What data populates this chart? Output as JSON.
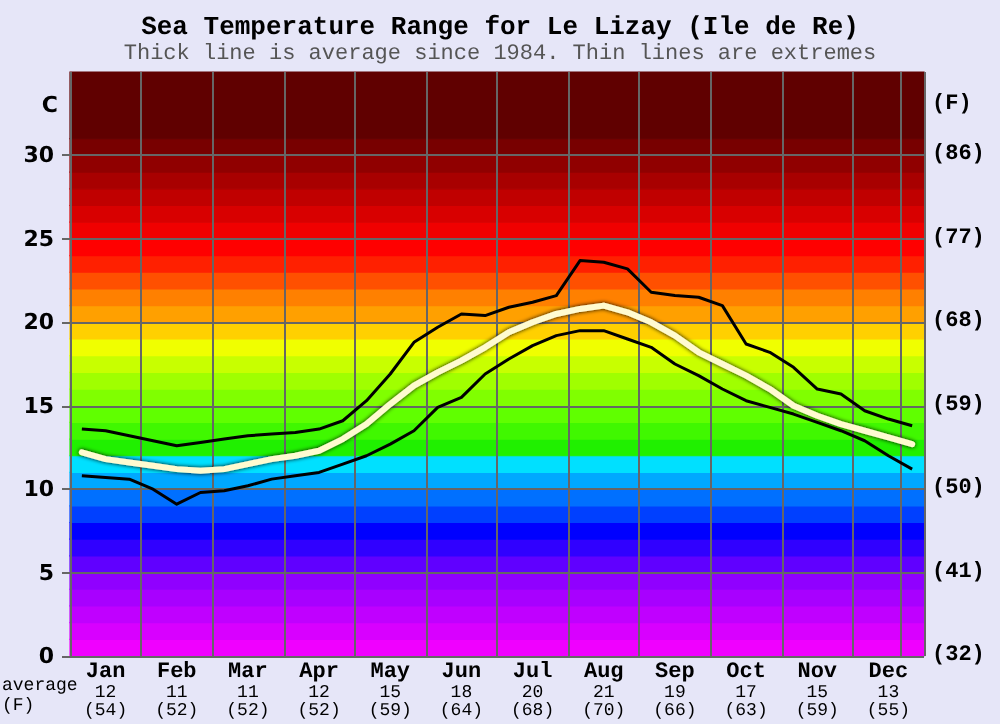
{
  "chart_data": {
    "type": "line",
    "title": "Sea Temperature Range for Le Lizay (Ile de Re)",
    "subtitle": "Thick line is average since 1984. Thin lines are extremes",
    "ylabel": "C",
    "y2label": "(F)",
    "categories": [
      null,
      "Jan\n12\n(54)",
      null,
      null,
      "Feb\n11\n(52)",
      null,
      null,
      "Mar\n11\n(52)",
      null,
      null,
      "Apr\n12\n(52)",
      null,
      null,
      "May\n15\n(59)",
      null,
      null,
      "Jun\n18\n(64)",
      null,
      null,
      "Jul\n20\n(68)",
      null,
      null,
      "Aug\n21\n(70)",
      null,
      null,
      "Sep\n19\n(66)",
      null,
      null,
      "Oct\n17\n(63)",
      null,
      null,
      "Nov\n15\n(59)",
      null,
      null,
      "Dec\n13\n(55)",
      null
    ],
    "annotations": [
      "average\n(F)"
    ],
    "ylim": [
      0,
      35
    ],
    "yticks": [
      0,
      5,
      10,
      15,
      20,
      25,
      30
    ],
    "y2lim": [
      32,
      95
    ],
    "y2ticks": [
      {
        "value": 32,
        "label": "(32)"
      },
      {
        "value": 41,
        "label": "(41)"
      },
      {
        "value": 50,
        "label": "(50)"
      },
      {
        "value": 59,
        "label": "(59)"
      },
      {
        "value": 68,
        "label": "(68)"
      },
      {
        "value": 77,
        "label": "(77)"
      },
      {
        "value": 86,
        "label": "(86)"
      }
    ],
    "grid": true,
    "series": [
      {
        "color": "#000000",
        "values": [
          13.6,
          13.5,
          13.2,
          12.9,
          12.6,
          12.8,
          13.0,
          13.2,
          13.3,
          13.4,
          13.6,
          14.1,
          15.3,
          16.9,
          18.8,
          19.7,
          20.5,
          20.4,
          20.9,
          21.2,
          21.6,
          23.7,
          23.6,
          23.2,
          21.8,
          21.6,
          21.5,
          21.0,
          18.7,
          18.2,
          17.3,
          16.0,
          15.7,
          14.7,
          14.2,
          13.8
        ]
      },
      {
        "color": "#fffbd0",
        "values": [
          12.2,
          11.8,
          11.6,
          11.4,
          11.2,
          11.1,
          11.2,
          11.5,
          11.8,
          12.0,
          12.3,
          13.0,
          13.9,
          15.1,
          16.2,
          17.0,
          17.7,
          18.5,
          19.4,
          20.0,
          20.5,
          20.8,
          21.0,
          20.6,
          20.0,
          19.2,
          18.2,
          17.5,
          16.8,
          16.0,
          15.0,
          14.4,
          13.9,
          13.5,
          13.1,
          12.7
        ]
      },
      {
        "color": "#000000",
        "values": [
          10.8,
          10.7,
          10.6,
          10.0,
          9.1,
          9.8,
          9.9,
          10.2,
          10.6,
          10.8,
          11.0,
          11.5,
          12.0,
          12.7,
          13.5,
          14.9,
          15.5,
          16.9,
          17.8,
          18.6,
          19.2,
          19.5,
          19.5,
          19.0,
          18.5,
          17.5,
          16.8,
          16.0,
          15.3,
          14.9,
          14.5,
          14.0,
          13.5,
          12.9,
          12.0,
          11.2
        ]
      }
    ],
    "bands": [
      {
        "axis": "y",
        "from": 0,
        "to": 1,
        "color": "#f000ff"
      },
      {
        "axis": "y",
        "from": 1,
        "to": 2,
        "color": "#d800ff"
      },
      {
        "axis": "y",
        "from": 2,
        "to": 3,
        "color": "#c000ff"
      },
      {
        "axis": "y",
        "from": 3,
        "to": 4,
        "color": "#a800ff"
      },
      {
        "axis": "y",
        "from": 4,
        "to": 5,
        "color": "#9000ff"
      },
      {
        "axis": "y",
        "from": 5,
        "to": 6,
        "color": "#6000ff"
      },
      {
        "axis": "y",
        "from": 6,
        "to": 7,
        "color": "#3000ff"
      },
      {
        "axis": "y",
        "from": 7,
        "to": 8,
        "color": "#0000ff"
      },
      {
        "axis": "y",
        "from": 8,
        "to": 9,
        "color": "#0040ff"
      },
      {
        "axis": "y",
        "from": 9,
        "to": 10,
        "color": "#0070ff"
      },
      {
        "axis": "y",
        "from": 10,
        "to": 11,
        "color": "#00a8ff"
      },
      {
        "axis": "y",
        "from": 11,
        "to": 12,
        "color": "#00e0ff"
      },
      {
        "axis": "y",
        "from": 12,
        "to": 13,
        "color": "#20f000"
      },
      {
        "axis": "y",
        "from": 13,
        "to": 14,
        "color": "#40f800"
      },
      {
        "axis": "y",
        "from": 14,
        "to": 15,
        "color": "#60ff00"
      },
      {
        "axis": "y",
        "from": 15,
        "to": 16,
        "color": "#80ff00"
      },
      {
        "axis": "y",
        "from": 16,
        "to": 17,
        "color": "#a0ff00"
      },
      {
        "axis": "y",
        "from": 17,
        "to": 18,
        "color": "#c8ff00"
      },
      {
        "axis": "y",
        "from": 18,
        "to": 19,
        "color": "#f0ff00"
      },
      {
        "axis": "y",
        "from": 19,
        "to": 20,
        "color": "#ffd000"
      },
      {
        "axis": "y",
        "from": 20,
        "to": 21,
        "color": "#ffa000"
      },
      {
        "axis": "y",
        "from": 21,
        "to": 22,
        "color": "#ff8000"
      },
      {
        "axis": "y",
        "from": 22,
        "to": 23,
        "color": "#ff5000"
      },
      {
        "axis": "y",
        "from": 23,
        "to": 24,
        "color": "#ff2000"
      },
      {
        "axis": "y",
        "from": 24,
        "to": 25,
        "color": "#ff0000"
      },
      {
        "axis": "y",
        "from": 25,
        "to": 26,
        "color": "#f00000"
      },
      {
        "axis": "y",
        "from": 26,
        "to": 27,
        "color": "#d80000"
      },
      {
        "axis": "y",
        "from": 27,
        "to": 28,
        "color": "#c00000"
      },
      {
        "axis": "y",
        "from": 28,
        "to": 29,
        "color": "#a80000"
      },
      {
        "axis": "y",
        "from": 29,
        "to": 30,
        "color": "#900000"
      },
      {
        "axis": "y",
        "from": 30,
        "to": 31,
        "color": "#780000"
      },
      {
        "axis": "y",
        "from": 31,
        "to": 35,
        "color": "#600000"
      }
    ]
  }
}
